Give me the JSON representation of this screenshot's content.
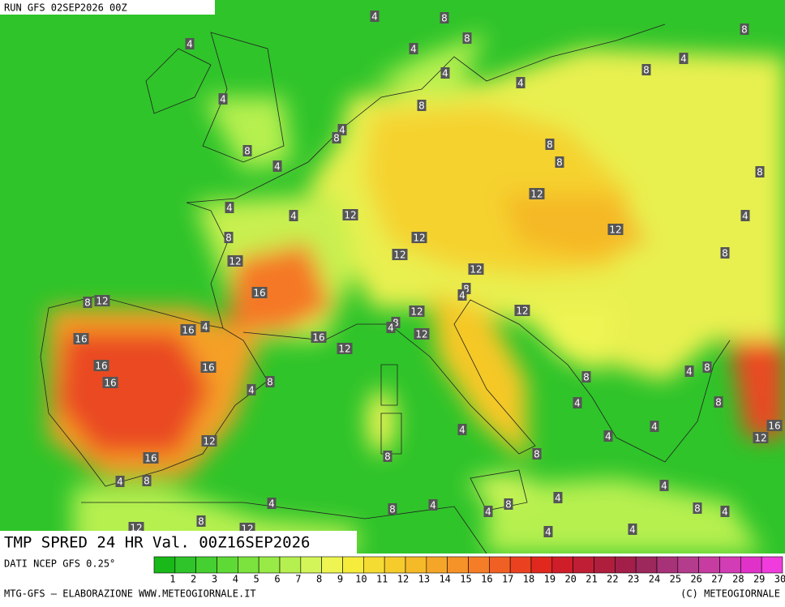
{
  "header": {
    "run": "RUN GFS 02SEP2026 00Z"
  },
  "footer": {
    "title": "TMP SPRED 24 HR Val. 00Z16SEP2026",
    "source": "DATI NCEP GFS 0.25°",
    "credit": "MTG-GFS — ELABORAZIONE WWW.METEOGIORNALE.IT",
    "copyright": "(C) METEOGIORNALE"
  },
  "legend": {
    "values": [
      1,
      2,
      3,
      4,
      5,
      6,
      7,
      8,
      9,
      10,
      11,
      12,
      13,
      14,
      15,
      16,
      17,
      18,
      19,
      20,
      21,
      22,
      23,
      24,
      25,
      26,
      27,
      28,
      29,
      30
    ],
    "colors": [
      "#19b919",
      "#2ec42a",
      "#45cf30",
      "#5fd936",
      "#7ce23e",
      "#98ea46",
      "#b6f050",
      "#d4f55a",
      "#eef552",
      "#f5ec3c",
      "#f5dc32",
      "#f5cc2c",
      "#f5ba28",
      "#f5a628",
      "#f59228",
      "#f57d28",
      "#f06024",
      "#ea4220",
      "#e0281e",
      "#cf1e2a",
      "#bf1e34",
      "#b01e3e",
      "#a31e48",
      "#9c285c",
      "#a83278",
      "#b43c8c",
      "#c63ca0",
      "#d23cb4",
      "#e032c8",
      "#f03cdc"
    ]
  },
  "map": {
    "labels": [
      4,
      8,
      8,
      4,
      8,
      4,
      4,
      4,
      8,
      4,
      4,
      8,
      4,
      8,
      8,
      4,
      8,
      8,
      8,
      12,
      4,
      4,
      12,
      4,
      12,
      8,
      12,
      12,
      12,
      8,
      12,
      8,
      16,
      4,
      8,
      12,
      12,
      12,
      8,
      4,
      16,
      4,
      16,
      16,
      12,
      12,
      16,
      16,
      4,
      8,
      16,
      8,
      8,
      4,
      8,
      4,
      16,
      4,
      12,
      4,
      4,
      12,
      8,
      8,
      16,
      4,
      8,
      4,
      4,
      8,
      4,
      4,
      8,
      8,
      4,
      4,
      8,
      12,
      12,
      4,
      4
    ]
  }
}
